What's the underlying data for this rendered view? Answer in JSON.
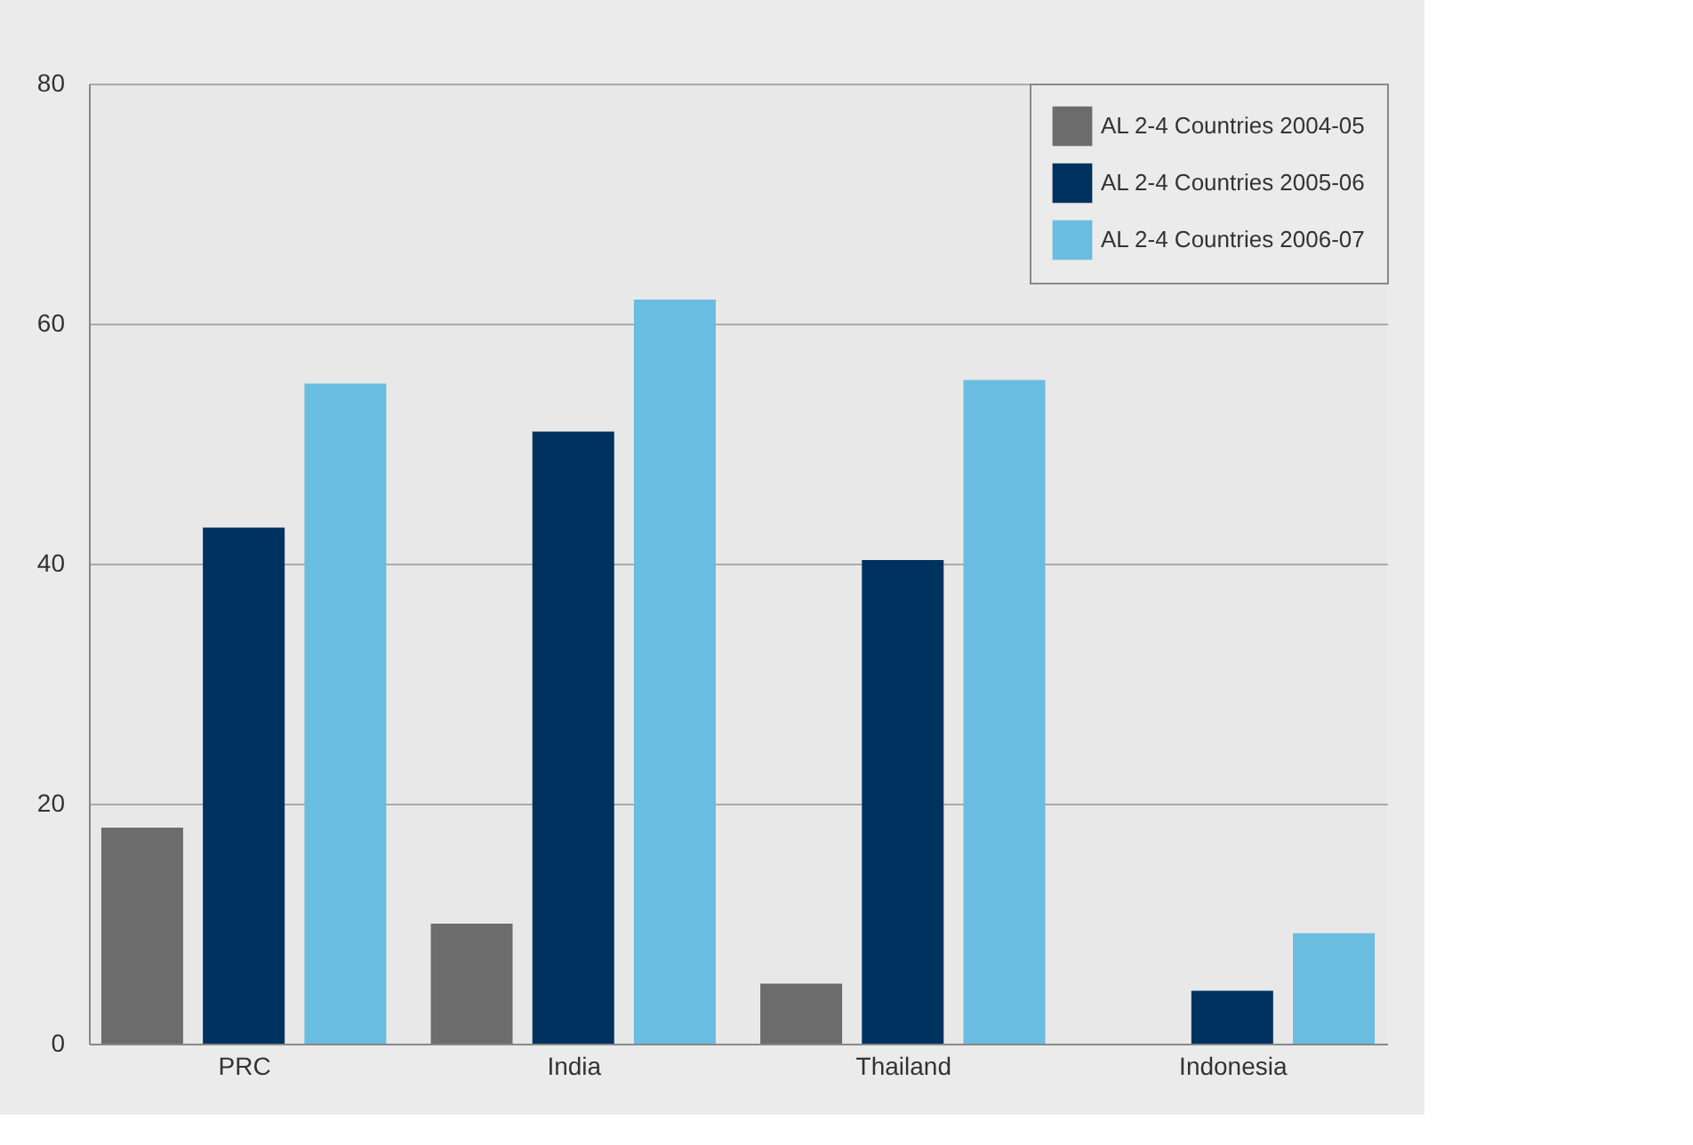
{
  "chart_data": {
    "type": "bar",
    "categories": [
      "PRC",
      "India",
      "Thailand",
      "Indonesia"
    ],
    "series": [
      {
        "name": "AL 2-4 Countries 2004-05",
        "color": "#6d6c6c",
        "values": [
          18,
          10,
          5,
          null
        ]
      },
      {
        "name": "AL 2-4 Countries 2005-06",
        "color": "#00325f",
        "values": [
          43,
          51,
          40.3,
          4.4
        ]
      },
      {
        "name": "AL 2-4 Countries 2006-07",
        "color": "#68bde0",
        "values": [
          55,
          62,
          55.3,
          9.2
        ]
      }
    ],
    "ylim": [
      0,
      80
    ],
    "yticks": [
      0,
      20,
      40,
      60,
      80
    ],
    "grid": "y",
    "legend": "top right"
  }
}
